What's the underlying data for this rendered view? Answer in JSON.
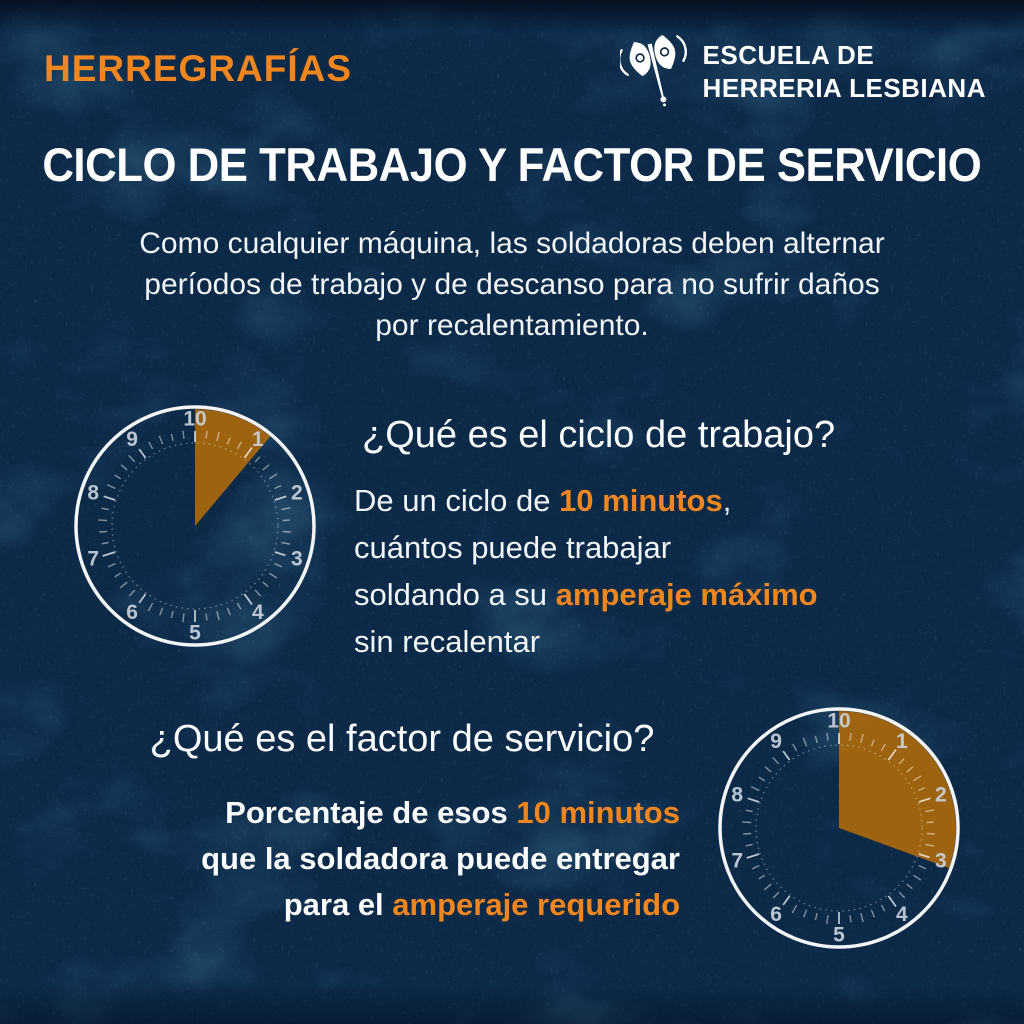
{
  "colors": {
    "background": "#0C2948",
    "accent_orange": "#F0861D",
    "wedge_orange": "#A3650F",
    "text_white": "#FFFFFF",
    "clock_numeral": "#C9D2DC",
    "clock_ring": "#FFFFFF"
  },
  "header": {
    "wordmark": "HERREGRAFÍAS",
    "logo_icon": "labrys-axe-icon",
    "school_name_line1": "ESCUELA DE",
    "school_name_line2": "HERRERIA LESBIANA"
  },
  "title": "CICLO DE TRABAJO Y FACTOR DE SERVICIO",
  "intro_lines": [
    "Como cualquier máquina, las soldadoras deben alternar",
    "períodos de trabajo y de descanso para no sufrir daños",
    "por recalentamiento."
  ],
  "duty_cycle": {
    "heading": "¿Qué es el ciclo de trabajo?",
    "body_lines": [
      [
        {
          "t": "De un ciclo de ",
          "a": false
        },
        {
          "t": "10 minutos",
          "a": true
        },
        {
          "t": ",",
          "a": false
        }
      ],
      [
        {
          "t": "cuántos puede trabajar",
          "a": false
        }
      ],
      [
        {
          "t": "soldando a su ",
          "a": false
        },
        {
          "t": "amperaje máximo",
          "a": true
        }
      ],
      [
        {
          "t": "sin recalentar",
          "a": false
        }
      ]
    ]
  },
  "service_factor": {
    "heading": "¿Qué es el factor de servicio?",
    "body_lines": [
      [
        {
          "t": "Porcentaje de esos ",
          "a": false
        },
        {
          "t": "10 minutos",
          "a": true
        }
      ],
      [
        {
          "t": "que la soldadora puede entregar",
          "a": false
        }
      ],
      [
        {
          "t": "para el ",
          "a": false
        },
        {
          "t": "amperaje requerido",
          "a": true
        }
      ]
    ]
  },
  "clocks": [
    {
      "id": "duty-cycle-clock",
      "numbers": [
        "10",
        "1",
        "2",
        "3",
        "4",
        "5",
        "6",
        "7",
        "8",
        "9"
      ],
      "wedge_start_deg": 0,
      "wedge_end_deg": 40
    },
    {
      "id": "service-factor-clock",
      "numbers": [
        "10",
        "1",
        "2",
        "3",
        "4",
        "5",
        "6",
        "7",
        "8",
        "9"
      ],
      "wedge_start_deg": 0,
      "wedge_end_deg": 110
    }
  ]
}
